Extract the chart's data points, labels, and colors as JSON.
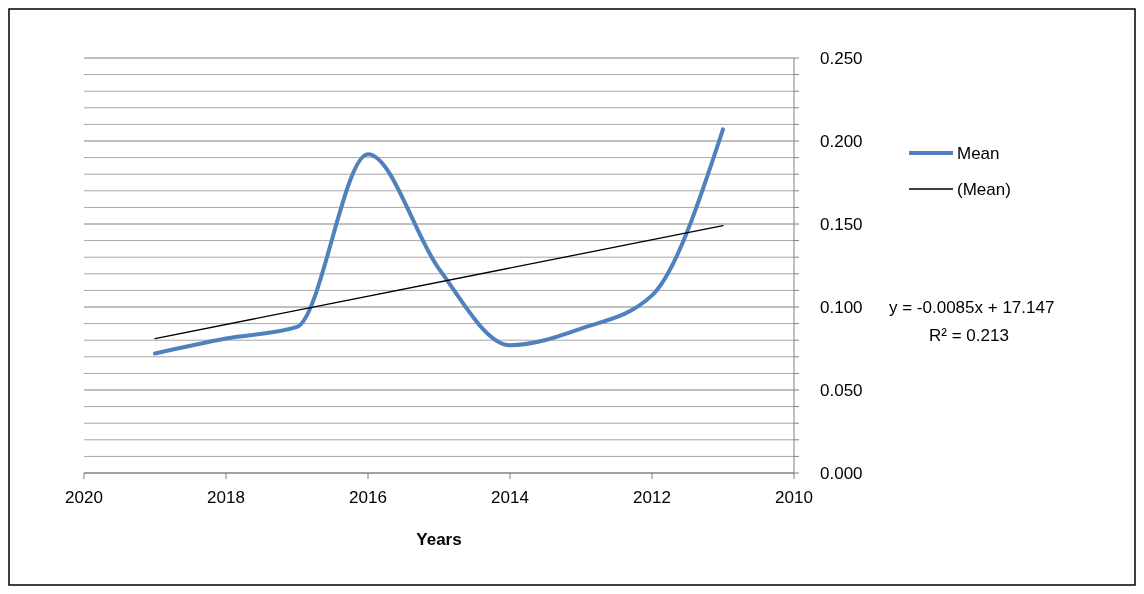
{
  "chart_data": {
    "type": "line",
    "xlabel": "Years",
    "xlim": [
      2020,
      2010
    ],
    "xticks": [
      2020,
      2018,
      2016,
      2014,
      2012,
      2010
    ],
    "ylim": [
      0,
      0.25
    ],
    "yticks": [
      {
        "value": 0,
        "label": "0.000"
      },
      {
        "value": 0.01,
        "label": null
      },
      {
        "value": 0.02,
        "label": null
      },
      {
        "value": 0.03,
        "label": null
      },
      {
        "value": 0.04,
        "label": null
      },
      {
        "value": 0.05,
        "label": "0.050"
      },
      {
        "value": 0.06,
        "label": null
      },
      {
        "value": 0.07,
        "label": null
      },
      {
        "value": 0.08,
        "label": null
      },
      {
        "value": 0.09,
        "label": null
      },
      {
        "value": 0.1,
        "label": "0.100"
      },
      {
        "value": 0.11,
        "label": null
      },
      {
        "value": 0.12,
        "label": null
      },
      {
        "value": 0.13,
        "label": null
      },
      {
        "value": 0.14,
        "label": null
      },
      {
        "value": 0.15,
        "label": "0.150"
      },
      {
        "value": 0.16,
        "label": null
      },
      {
        "value": 0.17,
        "label": null
      },
      {
        "value": 0.18,
        "label": null
      },
      {
        "value": 0.19,
        "label": null
      },
      {
        "value": 0.2,
        "label": "0.200"
      },
      {
        "value": 0.21,
        "label": null
      },
      {
        "value": 0.22,
        "label": null
      },
      {
        "value": 0.23,
        "label": null
      },
      {
        "value": 0.24,
        "label": null
      },
      {
        "value": 0.25,
        "label": "0.250"
      }
    ],
    "series": [
      {
        "name": "Mean",
        "color": "#4f81bd",
        "x": [
          2019,
          2018,
          2017,
          2016,
          2015,
          2014,
          2013,
          2012,
          2011
        ],
        "values": [
          0.072,
          0.081,
          0.088,
          0.192,
          0.123,
          0.077,
          0.087,
          0.107,
          0.207
        ]
      },
      {
        "name": "(Mean)",
        "color": "#000000",
        "x": [
          2019,
          2011
        ],
        "values": [
          0.081,
          0.149
        ]
      }
    ],
    "annotations": [
      "y = -0.0085x + 17.147",
      "R² = 0.213"
    ],
    "grid": "y",
    "legend": "right",
    "marker": "none",
    "line_style": "solid"
  }
}
